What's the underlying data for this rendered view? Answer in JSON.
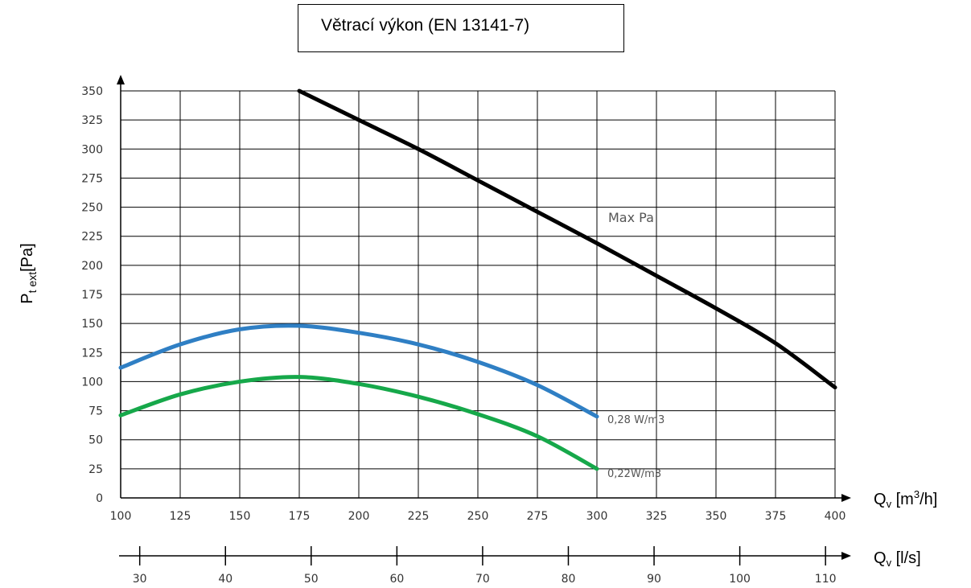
{
  "title": "Větrací výkon (EN 13141-7)",
  "y_axis": {
    "symbol": "P",
    "subscript": "t ext",
    "unit": "[Pa]"
  },
  "x_axis": {
    "symbol": "Q",
    "subscript": "v",
    "unit_prefix": " [m",
    "unit_sup": "3",
    "unit_suffix": "/h]"
  },
  "x2_axis": {
    "symbol": "Q",
    "subscript": "v",
    "unit": " [l/s]",
    "ticks": [
      30,
      40,
      50,
      60,
      70,
      80,
      90,
      100,
      110
    ]
  },
  "chart_data": {
    "type": "line",
    "title": "Větrací výkon (EN 13141-7)",
    "xlabel": "Qv [m3/h]",
    "ylabel": "Pt ext[Pa]",
    "xlim": [
      100,
      400
    ],
    "ylim": [
      0,
      350
    ],
    "x_ticks": [
      100,
      125,
      150,
      175,
      200,
      225,
      250,
      275,
      300,
      325,
      350,
      375,
      400
    ],
    "y_ticks": [
      0,
      25,
      50,
      75,
      100,
      125,
      150,
      175,
      200,
      225,
      250,
      275,
      300,
      325,
      350
    ],
    "grid": true,
    "secondary_x": {
      "label": "Qv [l/s]",
      "ticks": [
        30,
        40,
        50,
        60,
        70,
        80,
        90,
        100,
        110
      ]
    },
    "series": [
      {
        "name": "Max Pa",
        "color": "#000000",
        "points": [
          [
            175,
            350
          ],
          [
            200,
            325
          ],
          [
            225,
            300
          ],
          [
            250,
            273
          ],
          [
            275,
            246
          ],
          [
            300,
            219
          ],
          [
            325,
            191
          ],
          [
            350,
            163
          ],
          [
            375,
            133
          ],
          [
            400,
            95
          ]
        ]
      },
      {
        "name": "0,28 W/m3",
        "color": "#2f7fc4",
        "points": [
          [
            100,
            112
          ],
          [
            125,
            132
          ],
          [
            150,
            145
          ],
          [
            175,
            148
          ],
          [
            200,
            142
          ],
          [
            225,
            132
          ],
          [
            250,
            117
          ],
          [
            275,
            97
          ],
          [
            300,
            70
          ]
        ]
      },
      {
        "name": "0,22W/m3",
        "color": "#16a84a",
        "points": [
          [
            100,
            71
          ],
          [
            125,
            89
          ],
          [
            150,
            100
          ],
          [
            175,
            104
          ],
          [
            200,
            98
          ],
          [
            225,
            87
          ],
          [
            250,
            72
          ],
          [
            275,
            53
          ],
          [
            300,
            25
          ]
        ]
      }
    ]
  }
}
